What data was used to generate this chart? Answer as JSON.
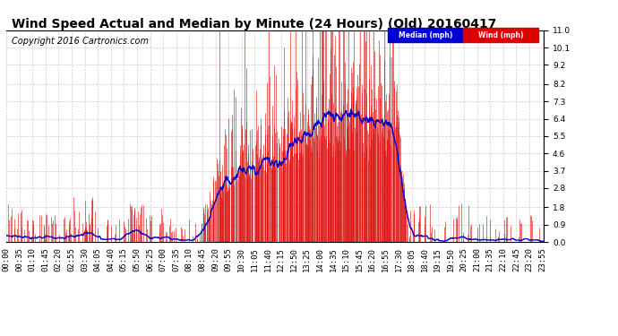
{
  "title": "Wind Speed Actual and Median by Minute (24 Hours) (Old) 20160417",
  "copyright": "Copyright 2016 Cartronics.com",
  "yticks": [
    0.0,
    0.9,
    1.8,
    2.8,
    3.7,
    4.6,
    5.5,
    6.4,
    7.3,
    8.2,
    9.2,
    10.1,
    11.0
  ],
  "ymax": 11.0,
  "ymin": 0.0,
  "wind_bar_color": "#dd0000",
  "median_line_color": "#0000cc",
  "background_color": "#ffffff",
  "grid_color": "#cccccc",
  "title_fontsize": 10,
  "copyright_fontsize": 7,
  "tick_fontsize": 6.5
}
